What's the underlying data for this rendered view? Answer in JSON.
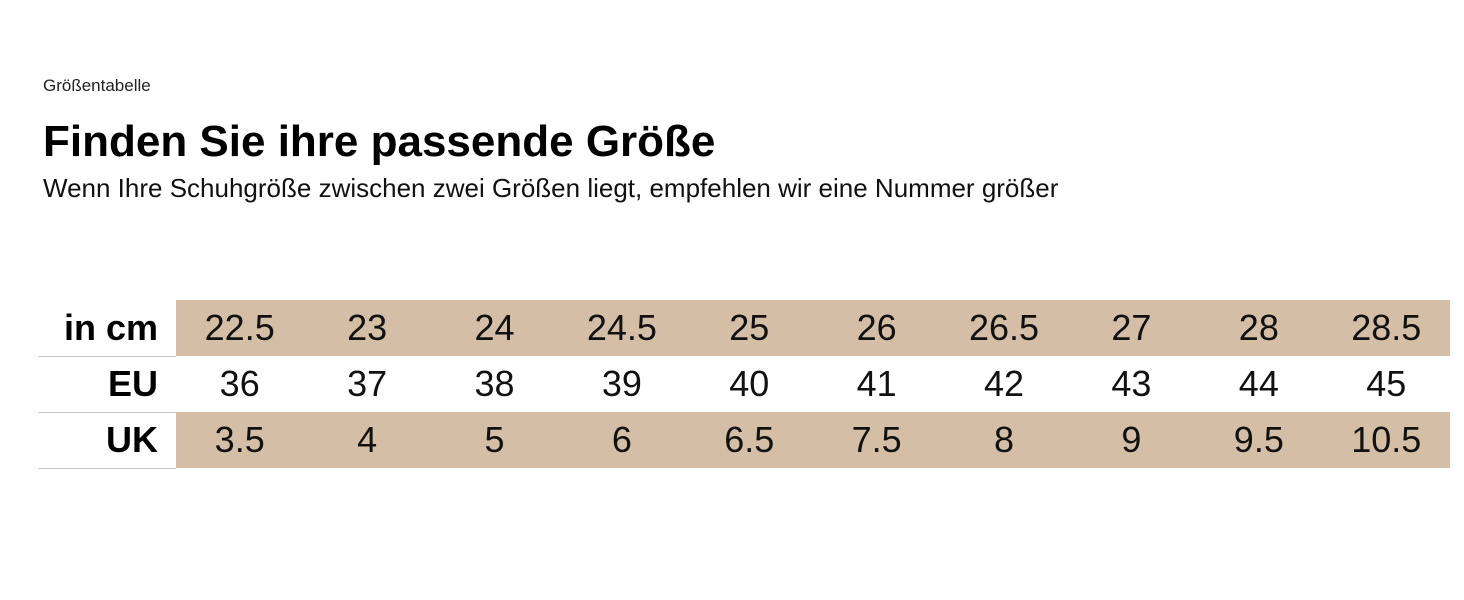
{
  "header": {
    "eyebrow": "Größentabelle",
    "title": "Finden Sie ihre passende Größe",
    "subtitle": "Wenn Ihre Schuhgröße zwischen zwei Größen liegt, empfehlen wir eine Nummer größer"
  },
  "colors": {
    "shade": "#d4bea6"
  },
  "table": {
    "rows": [
      {
        "label": "in cm",
        "values": [
          "22.5",
          "23",
          "24",
          "24.5",
          "25",
          "26",
          "26.5",
          "27",
          "28",
          "28.5"
        ]
      },
      {
        "label": "EU",
        "values": [
          "36",
          "37",
          "38",
          "39",
          "40",
          "41",
          "42",
          "43",
          "44",
          "45"
        ]
      },
      {
        "label": "UK",
        "values": [
          "3.5",
          "4",
          "5",
          "6",
          "6.5",
          "7.5",
          "8",
          "9",
          "9.5",
          "10.5"
        ]
      }
    ]
  }
}
